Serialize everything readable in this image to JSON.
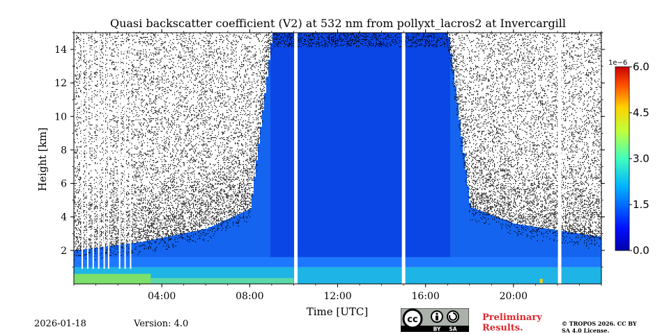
{
  "chart_data": {
    "type": "heatmap",
    "title": "Quasi backscatter coefficient (V2) at 532 nm from pollyxt_lacros2 at Invercargill",
    "xlabel": "Time [UTC]",
    "ylabel": "Height [km]",
    "x_range_hours": [
      0,
      24
    ],
    "xticks": [
      4,
      8,
      12,
      16,
      20
    ],
    "xtick_labels": [
      "04:00",
      "08:00",
      "12:00",
      "16:00",
      "20:00"
    ],
    "ylim_km": [
      0,
      15
    ],
    "yticks": [
      2,
      4,
      6,
      8,
      10,
      12,
      14
    ],
    "ytick_labels": [
      "2",
      "4",
      "6",
      "8",
      "10",
      "12",
      "14"
    ],
    "colorbar": {
      "min": 0.0,
      "max": 6.0,
      "ticks": [
        0.0,
        1.5,
        3.0,
        4.5,
        6.0
      ],
      "tick_labels": [
        "0.0",
        "1.5",
        "3.0",
        "4.5",
        "6.0"
      ],
      "exponent_label": "1e−6",
      "colormap": "jet"
    },
    "data_gaps_hours": [
      10.1,
      15.0,
      22.1
    ],
    "noisy_profiles_hours": [
      0.35,
      0.6,
      0.85,
      1.1,
      1.35,
      1.55,
      2.05,
      2.3,
      2.55
    ],
    "cloud_layer": {
      "start_hour": 8.9,
      "end_hour": 17.1,
      "top_km": 15
    },
    "boundary_layer_top_km": 1.0,
    "signal_top_km_by_hour": [
      [
        0,
        2.0
      ],
      [
        3,
        2.5
      ],
      [
        6,
        3.3
      ],
      [
        8,
        4.5
      ],
      [
        9,
        15
      ],
      [
        17,
        15
      ],
      [
        18,
        4.6
      ],
      [
        20,
        3.6
      ],
      [
        24,
        2.8
      ]
    ]
  },
  "footer": {
    "date": "2026-01-18",
    "version": "Version: 4.0",
    "preliminary": "Preliminary Results.",
    "copyright": "© TROPOS 2026. CC BY SA 4.0 License.",
    "license_badge": {
      "cc": "cc",
      "by": "BY",
      "sa": "SA"
    }
  },
  "colors": {
    "background": "#ffffff",
    "noise": "#000000",
    "preliminary_text": "#e0282e",
    "badge_bg": "#aab2ab",
    "badge_dark": "#000000"
  }
}
